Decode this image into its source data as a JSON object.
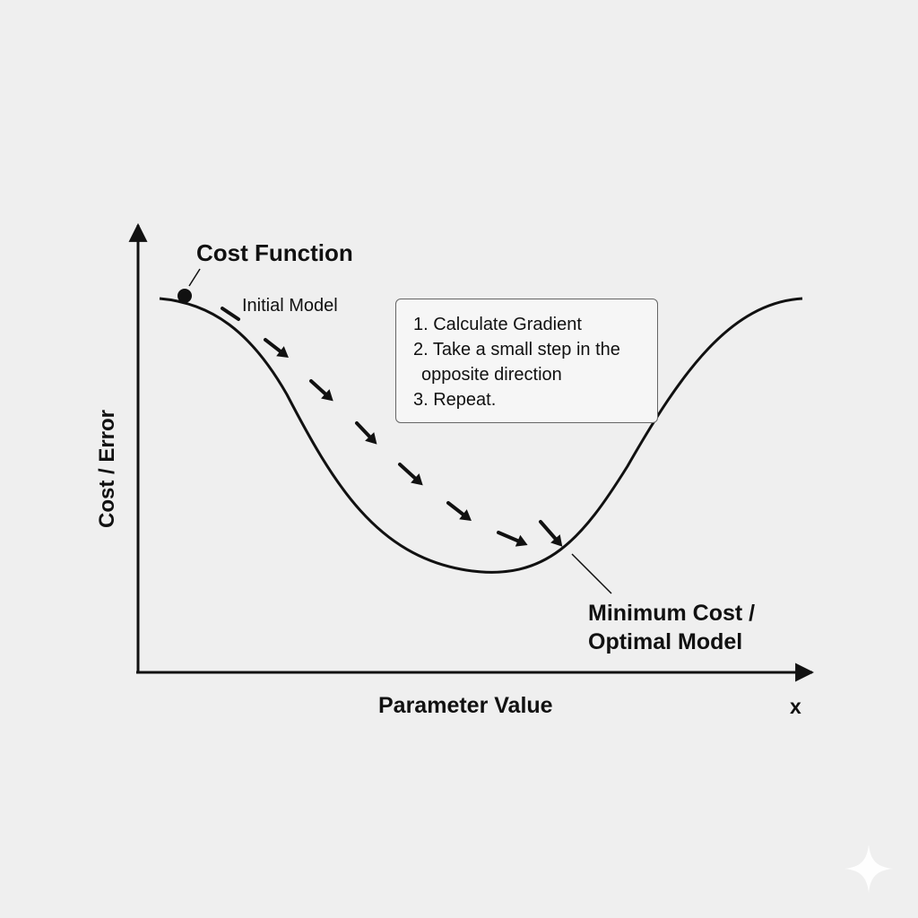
{
  "diagram": {
    "title": "Cost Function",
    "start_label": "Initial Model",
    "minimum_label": [
      "Minimum Cost /",
      "Optimal Model"
    ],
    "x_axis_label": "Parameter Value",
    "x_axis_symbol": "x",
    "y_axis_label": "Cost / Error",
    "steps": [
      "1. Calculate Gradient",
      "2. Take a small step in the",
      "opposite direction",
      "3. Repeat."
    ],
    "arrow_count": 8,
    "colors": {
      "background": "#efefef",
      "ink": "#111111",
      "box_border": "#666666",
      "box_fill": "#f6f6f6",
      "watermark": "#ffffff"
    },
    "watermark_icon": "sparkle-icon"
  }
}
